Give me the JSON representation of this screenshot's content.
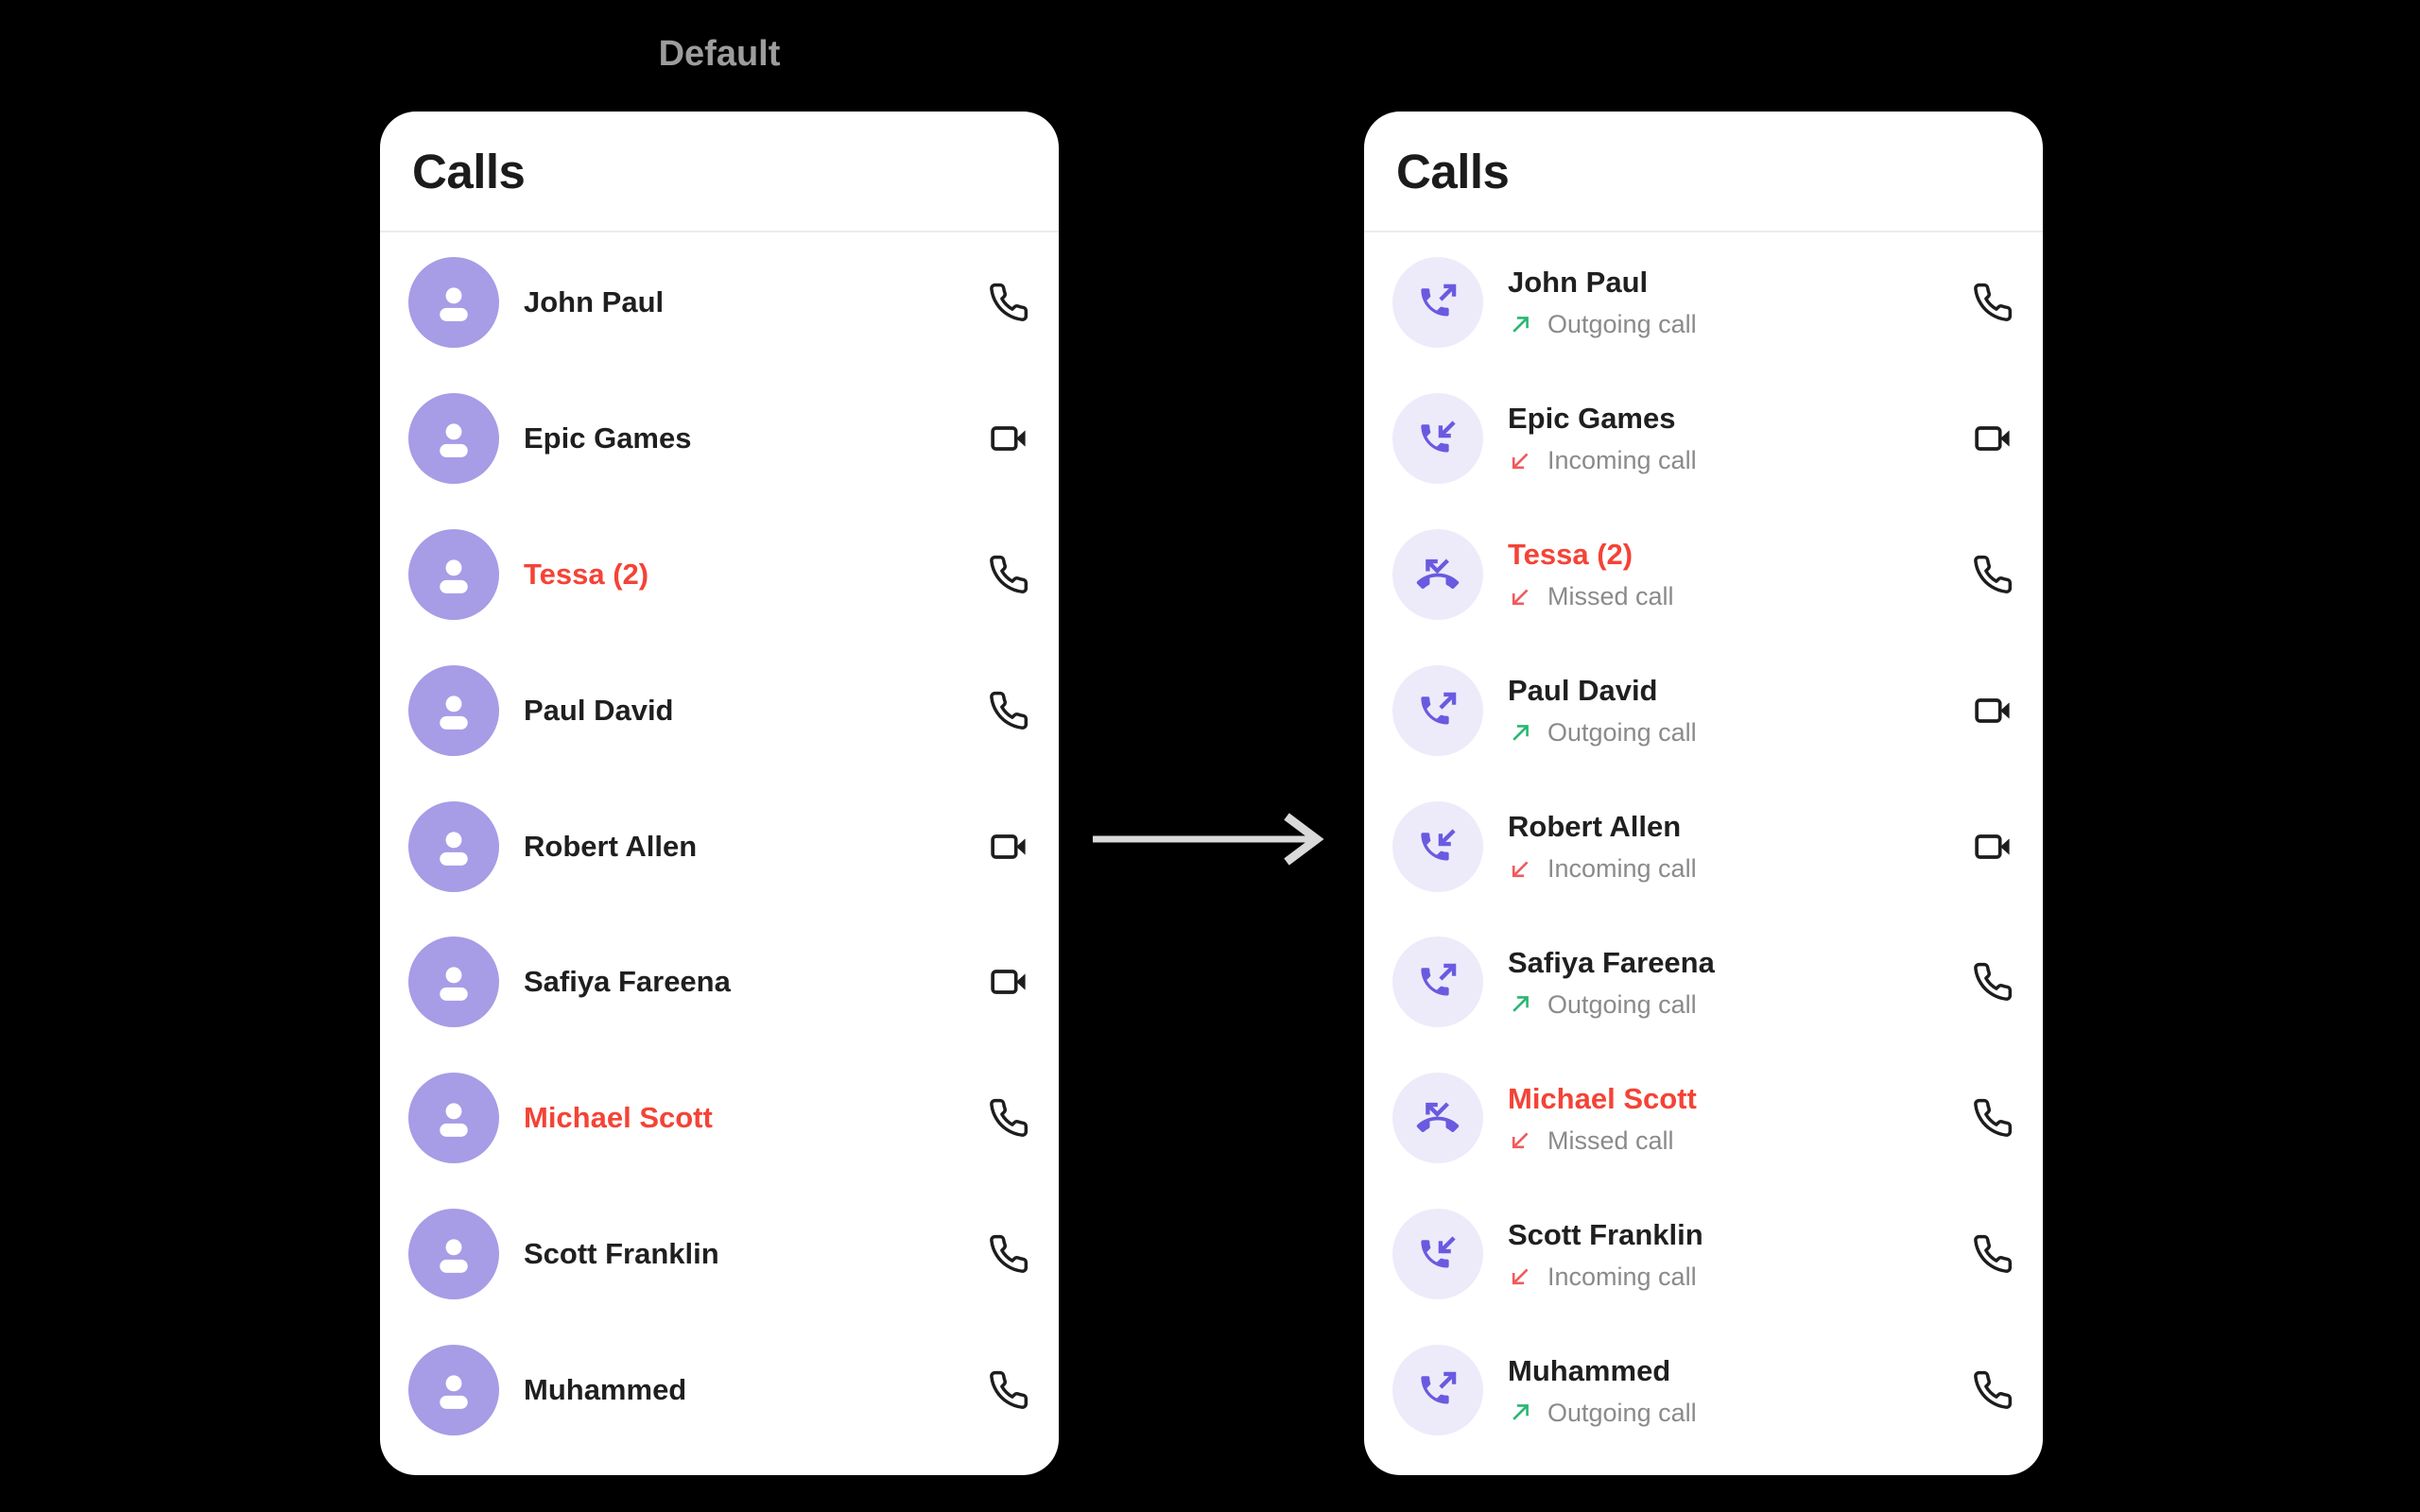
{
  "page_label": "Default",
  "left_panel": {
    "title": "Calls",
    "rows": [
      {
        "name": "John Paul",
        "alert": false,
        "avatar_icon": "person",
        "trailing": "phone"
      },
      {
        "name": "Epic Games",
        "alert": false,
        "avatar_icon": "person",
        "trailing": "video"
      },
      {
        "name": "Tessa (2)",
        "alert": true,
        "avatar_icon": "person",
        "trailing": "phone"
      },
      {
        "name": "Paul David",
        "alert": false,
        "avatar_icon": "person",
        "trailing": "phone"
      },
      {
        "name": "Robert Allen",
        "alert": false,
        "avatar_icon": "person",
        "trailing": "video"
      },
      {
        "name": "Safiya Fareena",
        "alert": false,
        "avatar_icon": "person",
        "trailing": "video"
      },
      {
        "name": "Michael Scott",
        "alert": true,
        "avatar_icon": "person",
        "trailing": "phone"
      },
      {
        "name": "Scott Franklin",
        "alert": false,
        "avatar_icon": "person",
        "trailing": "phone"
      },
      {
        "name": "Muhammed",
        "alert": false,
        "avatar_icon": "person",
        "trailing": "phone"
      }
    ]
  },
  "right_panel": {
    "title": "Calls",
    "rows": [
      {
        "name": "John Paul",
        "alert": false,
        "avatar_icon": "call-outgoing",
        "subtitle": "Outgoing call",
        "subtitle_icon": "arrow-up-right-green",
        "trailing": "phone"
      },
      {
        "name": "Epic Games",
        "alert": false,
        "avatar_icon": "call-incoming",
        "subtitle": "Incoming call",
        "subtitle_icon": "arrow-down-left-red",
        "trailing": "video"
      },
      {
        "name": "Tessa (2)",
        "alert": true,
        "avatar_icon": "call-missed",
        "subtitle": "Missed call",
        "subtitle_icon": "arrow-down-left-red",
        "trailing": "phone"
      },
      {
        "name": "Paul David",
        "alert": false,
        "avatar_icon": "call-outgoing",
        "subtitle": "Outgoing call",
        "subtitle_icon": "arrow-up-right-green",
        "trailing": "video"
      },
      {
        "name": "Robert Allen",
        "alert": false,
        "avatar_icon": "call-incoming",
        "subtitle": "Incoming call",
        "subtitle_icon": "arrow-down-left-red",
        "trailing": "video"
      },
      {
        "name": "Safiya Fareena",
        "alert": false,
        "avatar_icon": "call-outgoing",
        "subtitle": "Outgoing call",
        "subtitle_icon": "arrow-up-right-green",
        "trailing": "phone"
      },
      {
        "name": "Michael Scott",
        "alert": true,
        "avatar_icon": "call-missed",
        "subtitle": "Missed call",
        "subtitle_icon": "arrow-down-left-red",
        "trailing": "phone"
      },
      {
        "name": "Scott Franklin",
        "alert": false,
        "avatar_icon": "call-incoming",
        "subtitle": "Incoming call",
        "subtitle_icon": "arrow-down-left-red",
        "trailing": "phone"
      },
      {
        "name": "Muhammed",
        "alert": false,
        "avatar_icon": "call-outgoing",
        "subtitle": "Outgoing call",
        "subtitle_icon": "arrow-up-right-green",
        "trailing": "phone"
      }
    ]
  },
  "colors": {
    "accent_purple": "#6A5AE0",
    "avatar_left_bg": "#A79CE6",
    "avatar_right_bg": "#EDEBFA",
    "alert_red": "#F44336",
    "outgoing_green": "#2BB673",
    "incoming_red": "#EF5B5B",
    "subtitle_gray": "#8A8A8A",
    "trailing_icon_dark": "#1D1D1D",
    "transition_arrow_gray": "#D9D9D9"
  }
}
